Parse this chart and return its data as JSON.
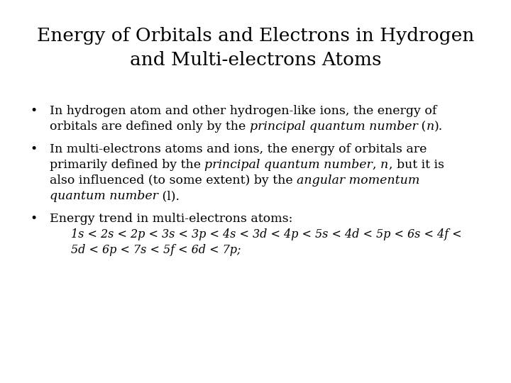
{
  "title_line1": "Energy of Orbitals and Electrons in Hydrogen",
  "title_line2": "and Multi-electrons Atoms",
  "title_fontsize": 19,
  "body_fontsize": 12.5,
  "energy_fontsize": 11.5,
  "background_color": "#ffffff",
  "text_color": "#000000",
  "font_family": "DejaVu Serif",
  "bullet1_l1": "In hydrogen atom and other hydrogen-like ions, the energy of",
  "bullet1_l2_pre": "orbitals are defined only by the ",
  "bullet1_l2_italic": "principal quantum number",
  "bullet1_l2_mid": " (",
  "bullet1_l2_n": "n",
  "bullet1_l2_post": ").",
  "bullet2_l1": "In multi-electrons atoms and ions, the energy of orbitals are",
  "bullet2_l2_pre": "primarily defined by the ",
  "bullet2_l2_italic": "principal quantum number",
  "bullet2_l2_mid": ", ",
  "bullet2_l2_n": "n",
  "bullet2_l2_post": ", but it is",
  "bullet2_l3_pre": "also influenced (to some extent) by the ",
  "bullet2_l3_italic": "angular momentum",
  "bullet2_l4_italic": "quantum number",
  "bullet2_l4_post": " (l).",
  "bullet3_l1": "Energy trend in multi-electrons atoms:",
  "energy_l1": "1s < 2s < 2p < 3s < 3p < 4s < 3d < 4p < 5s < 4d < 5p < 6s < 4f <",
  "energy_l2": "5d < 6p < 7s < 5f < 6d < 7p;"
}
